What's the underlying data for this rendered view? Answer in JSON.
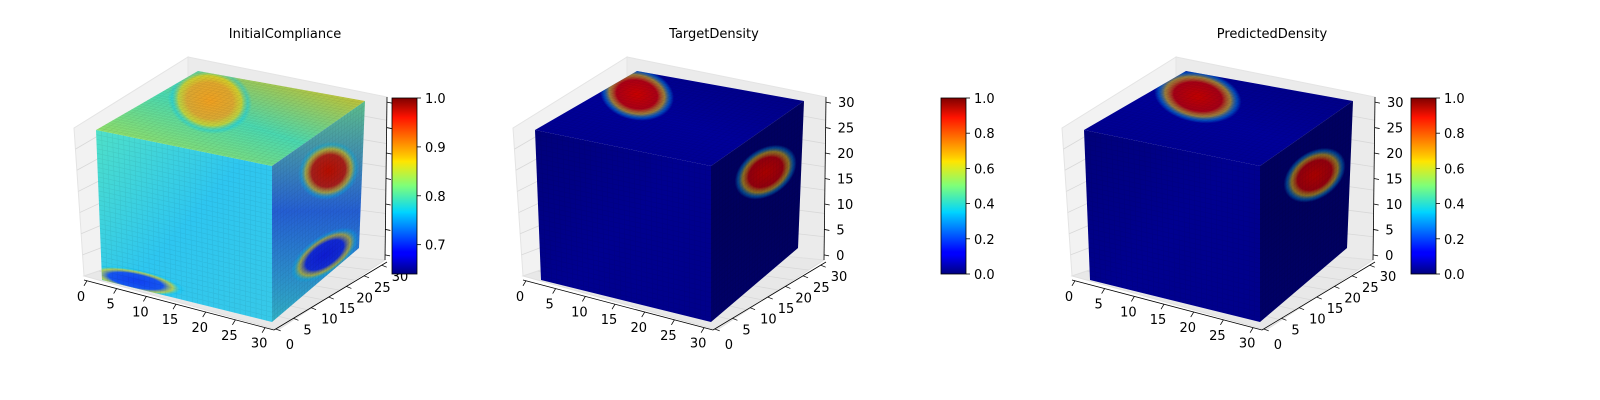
{
  "chart_data": [
    {
      "type": "voxel-3d",
      "title": "InitialCompliance",
      "colormap": "jet",
      "x_ticks": [
        "0",
        "5",
        "10",
        "15",
        "20",
        "25",
        "30"
      ],
      "y_ticks": [
        "0",
        "5",
        "10",
        "15",
        "20",
        "25",
        "30"
      ],
      "z_ticks": [],
      "xlim": [
        0,
        32
      ],
      "ylim": [
        0,
        32
      ],
      "zlim": [
        0,
        32
      ],
      "colorbar": {
        "min": 0.64,
        "max": 1.0,
        "ticks": [
          "0.7",
          "0.8",
          "0.9",
          "1.0"
        ],
        "tick_values": [
          0.7,
          0.8,
          0.9,
          1.0
        ]
      },
      "front_fill": [
        "#4fe0c8",
        "#2ec6f0",
        "#37c9e8"
      ],
      "top_fill": [
        "#b8e040",
        "#4ad8b0",
        "#f4b800"
      ],
      "side_fill": [
        "#6ad8a0",
        "#2a6cf0",
        "#38c8e0"
      ],
      "hotspots": [
        {
          "face": "top",
          "u": 0.28,
          "v": 0.35,
          "ru": 0.25,
          "rv": 0.28,
          "color": "#f0a020"
        },
        {
          "face": "side",
          "u": 0.62,
          "v": 0.3,
          "ru": 0.28,
          "rv": 0.18,
          "color": "#d01000"
        },
        {
          "face": "side",
          "u": 0.6,
          "v": 0.85,
          "ru": 0.35,
          "rv": 0.12,
          "color": "#1020f0"
        },
        {
          "face": "front",
          "u": 0.2,
          "v": 0.95,
          "ru": 0.28,
          "rv": 0.08,
          "color": "#1040f0"
        }
      ]
    },
    {
      "type": "voxel-3d",
      "title": "TargetDensity",
      "colormap": "jet",
      "x_ticks": [
        "0",
        "5",
        "10",
        "15",
        "20",
        "25",
        "30"
      ],
      "y_ticks": [
        "0",
        "5",
        "10",
        "15",
        "20",
        "25",
        "30"
      ],
      "z_ticks": [
        "0",
        "5",
        "10",
        "15",
        "20",
        "25",
        "30"
      ],
      "xlim": [
        0,
        32
      ],
      "ylim": [
        0,
        32
      ],
      "zlim": [
        0,
        32
      ],
      "colorbar": {
        "min": 0.0,
        "max": 1.0,
        "ticks": [
          "0.0",
          "0.2",
          "0.4",
          "0.6",
          "0.8",
          "1.0"
        ],
        "tick_values": [
          0,
          0.2,
          0.4,
          0.6,
          0.8,
          1.0
        ]
      },
      "front_fill": [
        "#00007a",
        "#000090",
        "#00008a"
      ],
      "top_fill": [
        "#00008c",
        "#00009a",
        "#000080"
      ],
      "side_fill": [
        "#000070",
        "#00006a",
        "#000078"
      ],
      "hotspots": [
        {
          "face": "top",
          "u": 0.18,
          "v": 0.3,
          "ru": 0.22,
          "rv": 0.22,
          "color": "#c80000"
        },
        {
          "face": "side",
          "u": 0.6,
          "v": 0.3,
          "ru": 0.3,
          "rv": 0.15,
          "color": "#c00000"
        }
      ]
    },
    {
      "type": "voxel-3d",
      "title": "PredictedDensity",
      "colormap": "jet",
      "x_ticks": [
        "0",
        "5",
        "10",
        "15",
        "20",
        "25",
        "30"
      ],
      "y_ticks": [
        "0",
        "5",
        "10",
        "15",
        "20",
        "25",
        "30"
      ],
      "z_ticks": [
        "0",
        "5",
        "10",
        "15",
        "20",
        "25",
        "30"
      ],
      "xlim": [
        0,
        32
      ],
      "ylim": [
        0,
        32
      ],
      "zlim": [
        0,
        32
      ],
      "colorbar": {
        "min": 0.0,
        "max": 1.0,
        "ticks": [
          "0.0",
          "0.2",
          "0.4",
          "0.6",
          "0.8",
          "1.0"
        ],
        "tick_values": [
          0,
          0.2,
          0.4,
          0.6,
          0.8,
          1.0
        ]
      },
      "front_fill": [
        "#00007a",
        "#000090",
        "#00008a"
      ],
      "top_fill": [
        "#00008c",
        "#00009a",
        "#000080"
      ],
      "side_fill": [
        "#000070",
        "#00006a",
        "#000078"
      ],
      "hotspots": [
        {
          "face": "top",
          "u": 0.25,
          "v": 0.3,
          "ru": 0.26,
          "rv": 0.22,
          "color": "#c00000"
        },
        {
          "face": "side",
          "u": 0.6,
          "v": 0.32,
          "ru": 0.3,
          "rv": 0.15,
          "color": "#c00000"
        }
      ]
    }
  ]
}
